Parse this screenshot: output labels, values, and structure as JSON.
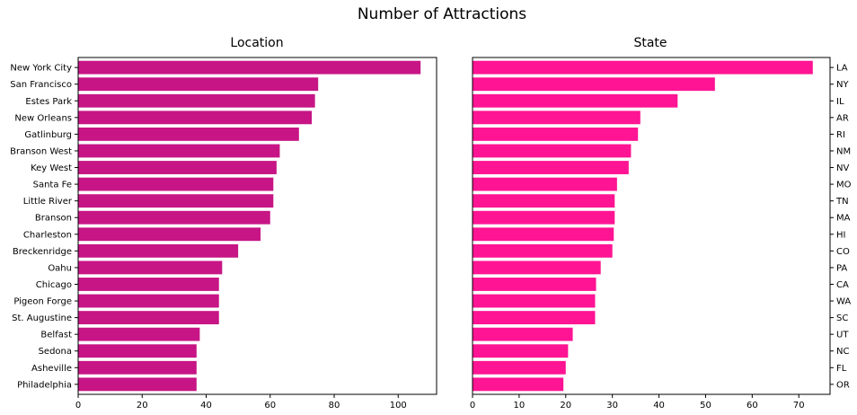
{
  "suptitle": "Number of Attractions",
  "chart_data": [
    {
      "type": "bar",
      "orientation": "horizontal",
      "title": "Location",
      "xlabel": "",
      "ylabel": "",
      "xlim": [
        0,
        112
      ],
      "xticks": [
        0,
        20,
        40,
        60,
        80,
        100
      ],
      "tick_side": "left",
      "color": "#c71585",
      "grid": false,
      "categories": [
        "New York City",
        "San Francisco",
        "Estes Park",
        "New Orleans",
        "Gatlinburg",
        "Branson West",
        "Key West",
        "Santa Fe",
        "Little River",
        "Branson",
        "Charleston",
        "Breckenridge",
        "Oahu",
        "Chicago",
        "Pigeon Forge",
        "St. Augustine",
        "Belfast",
        "Sedona",
        "Asheville",
        "Philadelphia"
      ],
      "values": [
        107,
        75,
        74,
        73,
        69,
        63,
        62,
        61,
        61,
        60,
        57,
        50,
        45,
        44,
        44,
        44,
        38,
        37,
        37,
        37
      ]
    },
    {
      "type": "bar",
      "orientation": "horizontal",
      "title": "State",
      "xlabel": "",
      "ylabel": "",
      "xlim": [
        0,
        76.7
      ],
      "xticks": [
        0,
        10,
        20,
        30,
        40,
        50,
        60,
        70
      ],
      "tick_side": "right",
      "color": "#ff1493",
      "grid": false,
      "categories": [
        "LA",
        "NY",
        "IL",
        "AR",
        "RI",
        "NM",
        "NV",
        "MO",
        "TN",
        "MA",
        "HI",
        "CO",
        "PA",
        "CA",
        "WA",
        "SC",
        "UT",
        "NC",
        "FL",
        "OR"
      ],
      "values": [
        73,
        52,
        44,
        36,
        35.5,
        34,
        33.5,
        31,
        30.5,
        30.5,
        30.3,
        30,
        27.5,
        26.5,
        26.3,
        26.3,
        21.5,
        20.5,
        20,
        19.5
      ]
    }
  ]
}
